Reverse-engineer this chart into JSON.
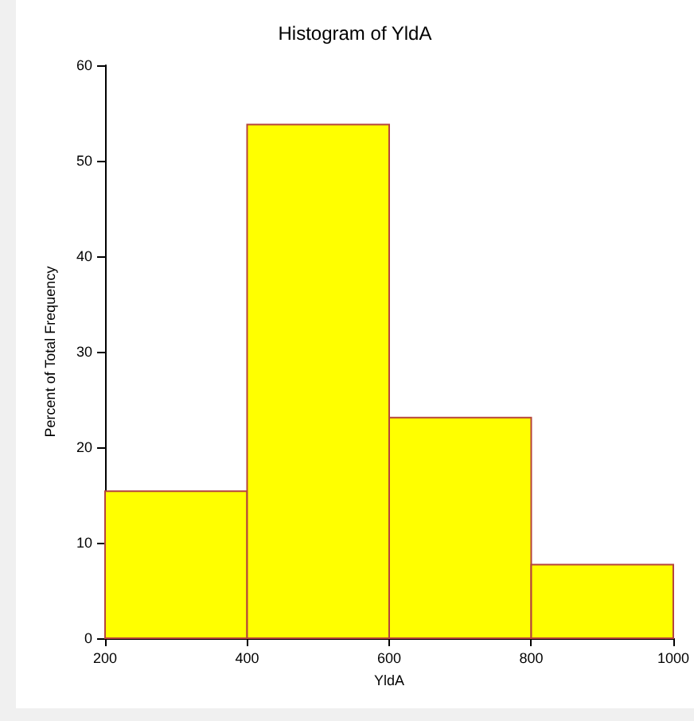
{
  "chart_data": {
    "type": "histogram",
    "title": "Histogram of YldA",
    "xlabel": "YldA",
    "ylabel": "Percent of Total Frequency",
    "bins": [
      200,
      400,
      600,
      800,
      1000
    ],
    "values": [
      15.4,
      53.8,
      23.1,
      7.7
    ],
    "color": "#ffff00",
    "xlim": [
      200,
      1000
    ],
    "xticks": [
      200,
      400,
      600,
      800,
      1000
    ],
    "ylim": [
      0,
      60
    ],
    "yticks": [
      0,
      10,
      20,
      30,
      40,
      50,
      60
    ],
    "grid": false
  }
}
